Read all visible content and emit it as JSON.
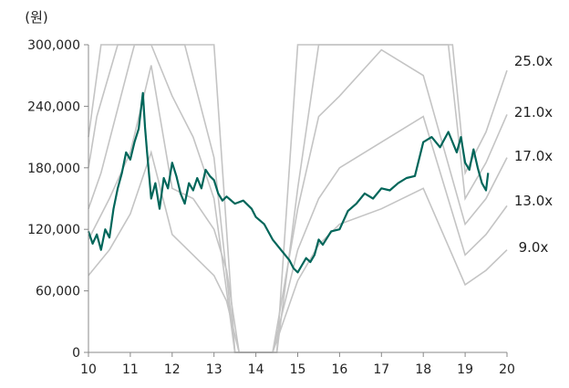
{
  "chart_data": {
    "type": "line",
    "ylabel": "(원)",
    "xlim": [
      10,
      20
    ],
    "ylim": [
      0,
      300000
    ],
    "x_ticks": [
      "10",
      "11",
      "12",
      "13",
      "14",
      "15",
      "16",
      "17",
      "18",
      "19",
      "20"
    ],
    "y_ticks": [
      "300,000",
      "240,000",
      "180,000",
      "120,000",
      "60,000",
      "0"
    ],
    "y_tick_values": [
      300000,
      240000,
      180000,
      120000,
      60000,
      0
    ],
    "grid": false,
    "legend": "right-inline",
    "colors": {
      "price": "#00665a",
      "band": "#c4c4c4",
      "axis": "#888888"
    },
    "price_series": {
      "name": "",
      "x": [
        10.0,
        10.1,
        10.2,
        10.3,
        10.4,
        10.5,
        10.6,
        10.7,
        10.8,
        10.9,
        11.0,
        11.1,
        11.2,
        11.3,
        11.35,
        11.4,
        11.5,
        11.6,
        11.7,
        11.8,
        11.9,
        12.0,
        12.1,
        12.2,
        12.3,
        12.4,
        12.5,
        12.6,
        12.7,
        12.8,
        12.9,
        13.0,
        13.1,
        13.2,
        13.3,
        13.5,
        13.7,
        13.9,
        14.0,
        14.2,
        14.4,
        14.6,
        14.8,
        14.9,
        15.0,
        15.1,
        15.2,
        15.3,
        15.4,
        15.5,
        15.6,
        15.8,
        16.0,
        16.2,
        16.4,
        16.6,
        16.8,
        17.0,
        17.2,
        17.4,
        17.6,
        17.8,
        18.0,
        18.2,
        18.4,
        18.6,
        18.8,
        18.9,
        19.0,
        19.1,
        19.2,
        19.3,
        19.4,
        19.5,
        19.55
      ],
      "y": [
        118000,
        106000,
        115000,
        100000,
        120000,
        112000,
        140000,
        160000,
        175000,
        195000,
        188000,
        205000,
        218000,
        253000,
        220000,
        195000,
        150000,
        165000,
        140000,
        170000,
        160000,
        185000,
        172000,
        155000,
        145000,
        165000,
        158000,
        170000,
        160000,
        178000,
        172000,
        168000,
        155000,
        148000,
        152000,
        145000,
        148000,
        140000,
        132000,
        125000,
        110000,
        100000,
        90000,
        82000,
        78000,
        85000,
        92000,
        88000,
        95000,
        110000,
        105000,
        118000,
        120000,
        138000,
        145000,
        155000,
        150000,
        160000,
        158000,
        165000,
        170000,
        172000,
        205000,
        210000,
        200000,
        215000,
        195000,
        210000,
        185000,
        178000,
        198000,
        180000,
        165000,
        158000,
        175000
      ]
    },
    "series": [
      {
        "name": "25.0x",
        "x": [
          10.0,
          10.3,
          11.0,
          11.2,
          12.5,
          13.0,
          13.5,
          14.0,
          14.5,
          15.0,
          15.3,
          16.0,
          17.0,
          18.0,
          18.7,
          19.0,
          19.5,
          20.0
        ],
        "y": [
          210000,
          300000,
          300000,
          300000,
          300000,
          300000,
          0,
          0,
          0,
          300000,
          300000,
          300000,
          300000,
          300000,
          300000,
          175000,
          215000,
          275000
        ]
      },
      {
        "name": "21.0x",
        "x": [
          10.0,
          10.2,
          10.7,
          11.0,
          11.3,
          12.3,
          13.0,
          13.5,
          14.0,
          14.5,
          15.0,
          15.5,
          16.0,
          17.0,
          18.0,
          18.6,
          19.0,
          19.5,
          20.0
        ],
        "y": [
          180000,
          230000,
          300000,
          300000,
          300000,
          300000,
          190000,
          0,
          0,
          0,
          160000,
          300000,
          300000,
          300000,
          300000,
          300000,
          150000,
          185000,
          232000
        ]
      },
      {
        "name": "17.0x",
        "x": [
          10.0,
          10.3,
          11.0,
          11.1,
          11.5,
          12.0,
          12.5,
          13.0,
          13.5,
          14.0,
          14.4,
          15.0,
          15.5,
          16.0,
          17.0,
          18.0,
          19.0,
          19.5,
          20.0
        ],
        "y": [
          140000,
          175000,
          285000,
          300000,
          300000,
          250000,
          210000,
          150000,
          0,
          0,
          0,
          140000,
          230000,
          250000,
          295000,
          270000,
          125000,
          150000,
          190000
        ]
      },
      {
        "name": "13.0x",
        "x": [
          10.0,
          10.5,
          11.0,
          11.5,
          12.0,
          12.5,
          13.0,
          13.3,
          13.6,
          14.0,
          14.4,
          15.0,
          15.5,
          16.0,
          17.0,
          18.0,
          19.0,
          19.5,
          20.0
        ],
        "y": [
          110000,
          150000,
          195000,
          280000,
          160000,
          150000,
          120000,
          80000,
          0,
          0,
          0,
          100000,
          150000,
          180000,
          205000,
          230000,
          95000,
          115000,
          143000
        ]
      },
      {
        "name": "9.0x",
        "x": [
          10.0,
          10.5,
          11.0,
          11.5,
          12.0,
          12.5,
          13.0,
          13.3,
          13.6,
          14.0,
          14.4,
          15.0,
          15.5,
          16.0,
          17.0,
          18.0,
          19.0,
          19.5,
          20.0
        ],
        "y": [
          75000,
          100000,
          135000,
          195000,
          115000,
          95000,
          75000,
          50000,
          0,
          0,
          0,
          70000,
          105000,
          125000,
          140000,
          160000,
          66000,
          80000,
          100000
        ]
      }
    ]
  }
}
